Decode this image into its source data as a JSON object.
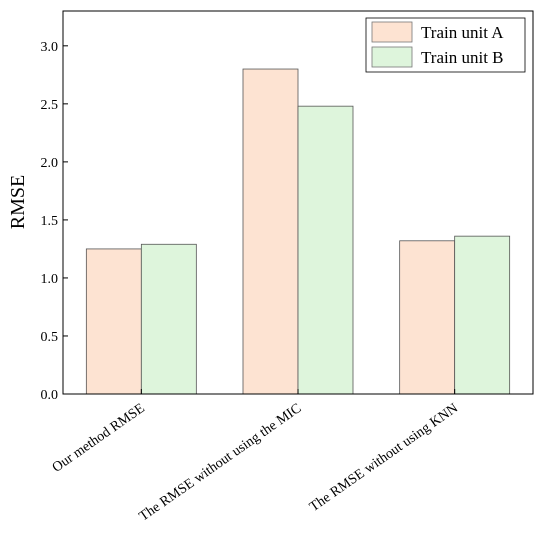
{
  "chart_data": {
    "type": "bar",
    "categories": [
      "Our method RMSE",
      "The RMSE without using the MIC",
      "The RMSE without using KNN"
    ],
    "series": [
      {
        "name": "Train unit A",
        "values": [
          1.25,
          2.8,
          1.32
        ],
        "color": "#fde3d2"
      },
      {
        "name": "Train unit B",
        "values": [
          1.29,
          2.48,
          1.36
        ],
        "color": "#def5dc"
      }
    ],
    "ylabel": "RMSE",
    "xlabel": "",
    "ylim": [
      0,
      3.3
    ],
    "yticks": [
      "0.0",
      "0.5",
      "1.0",
      "1.5",
      "2.0",
      "2.5",
      "3.0"
    ],
    "legend_position": "top-right",
    "grid": false
  }
}
